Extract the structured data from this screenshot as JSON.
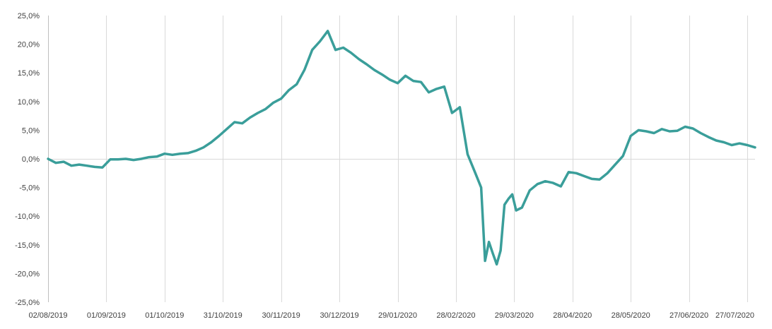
{
  "chart_data": {
    "type": "line",
    "title": "",
    "xlabel": "",
    "ylabel": "",
    "ylim": [
      -25,
      25
    ],
    "y_ticks": [
      25,
      20,
      15,
      10,
      5,
      0,
      -5,
      -10,
      -15,
      -20,
      -25
    ],
    "y_tick_labels": [
      "25,0%",
      "20,0%",
      "15,0%",
      "10,0%",
      "5,0%",
      "0,0%",
      "-5,0%",
      "-10,0%",
      "-15,0%",
      "-20,0%",
      "-25,0%"
    ],
    "x_tick_labels": [
      "02/08/2019",
      "01/09/2019",
      "01/10/2019",
      "31/10/2019",
      "30/11/2019",
      "30/12/2019",
      "29/01/2020",
      "28/02/2020",
      "29/03/2020",
      "28/04/2020",
      "28/05/2020",
      "27/06/2020",
      "27/07/2020"
    ],
    "x_range": [
      "02/08/2019",
      "31/07/2020"
    ],
    "grid": "vertical",
    "legend": "none",
    "line_color": "#3a9e9a",
    "series": [
      {
        "x": [
          "02/08/2019",
          "06/08/2019",
          "10/08/2019",
          "14/08/2019",
          "18/08/2019",
          "22/08/2019",
          "26/08/2019",
          "30/08/2019",
          "03/09/2019",
          "07/09/2019",
          "11/09/2019",
          "15/09/2019",
          "19/09/2019",
          "23/09/2019",
          "27/09/2019",
          "01/10/2019",
          "05/10/2019",
          "09/10/2019",
          "13/10/2019",
          "17/10/2019",
          "21/10/2019",
          "25/10/2019",
          "29/10/2019",
          "02/11/2019",
          "06/11/2019",
          "10/11/2019",
          "14/11/2019",
          "18/11/2019",
          "22/11/2019",
          "26/11/2019",
          "30/11/2019",
          "04/12/2019",
          "08/12/2019",
          "12/12/2019",
          "16/12/2019",
          "20/12/2019",
          "24/12/2019",
          "28/12/2019",
          "01/01/2020",
          "05/01/2020",
          "09/01/2020",
          "13/01/2020",
          "17/01/2020",
          "21/01/2020",
          "25/01/2020",
          "29/01/2020",
          "02/02/2020",
          "06/02/2020",
          "10/02/2020",
          "14/02/2020",
          "18/02/2020",
          "22/02/2020",
          "26/02/2020",
          "01/03/2020",
          "05/03/2020",
          "09/03/2020",
          "12/03/2020",
          "14/03/2020",
          "16/03/2020",
          "18/03/2020",
          "20/03/2020",
          "22/03/2020",
          "24/03/2020",
          "26/03/2020",
          "28/03/2020",
          "30/03/2020",
          "02/04/2020",
          "06/04/2020",
          "10/04/2020",
          "14/04/2020",
          "18/04/2020",
          "22/04/2020",
          "26/04/2020",
          "30/04/2020",
          "04/05/2020",
          "08/05/2020",
          "12/05/2020",
          "16/05/2020",
          "20/05/2020",
          "24/05/2020",
          "28/05/2020",
          "01/06/2020",
          "05/06/2020",
          "09/06/2020",
          "13/06/2020",
          "17/06/2020",
          "21/06/2020",
          "25/06/2020",
          "29/06/2020",
          "03/07/2020",
          "07/07/2020",
          "11/07/2020",
          "15/07/2020",
          "19/07/2020",
          "23/07/2020",
          "27/07/2020",
          "31/07/2020"
        ],
        "values": [
          0.0,
          -0.7,
          -0.5,
          -1.2,
          -1.0,
          -1.2,
          -1.4,
          -1.5,
          -0.1,
          -0.1,
          0.0,
          -0.2,
          0.0,
          0.3,
          0.4,
          0.9,
          0.7,
          0.9,
          1.0,
          1.4,
          2.0,
          2.9,
          4.0,
          5.2,
          6.4,
          6.2,
          7.2,
          8.0,
          8.7,
          9.8,
          10.5,
          12.0,
          13.0,
          15.5,
          19.0,
          20.5,
          22.3,
          19.0,
          19.4,
          18.5,
          17.4,
          16.5,
          15.5,
          14.7,
          13.8,
          13.2,
          14.5,
          13.6,
          13.4,
          11.6,
          12.2,
          12.6,
          8.0,
          9.0,
          0.8,
          -2.5,
          -5.0,
          -17.8,
          -14.5,
          -16.5,
          -18.4,
          -16.0,
          -8.0,
          -7.0,
          -6.2,
          -9.0,
          -8.5,
          -5.5,
          -4.4,
          -3.9,
          -4.2,
          -4.8,
          -2.3,
          -2.5,
          -3.0,
          -3.5,
          -3.6,
          -2.5,
          -1.0,
          0.5,
          4.0,
          5.0,
          4.8,
          4.5,
          5.2,
          4.8,
          4.9,
          5.6,
          5.3,
          4.5,
          3.8,
          3.2,
          2.9,
          2.4,
          2.7,
          2.4,
          2.0
        ]
      }
    ]
  }
}
